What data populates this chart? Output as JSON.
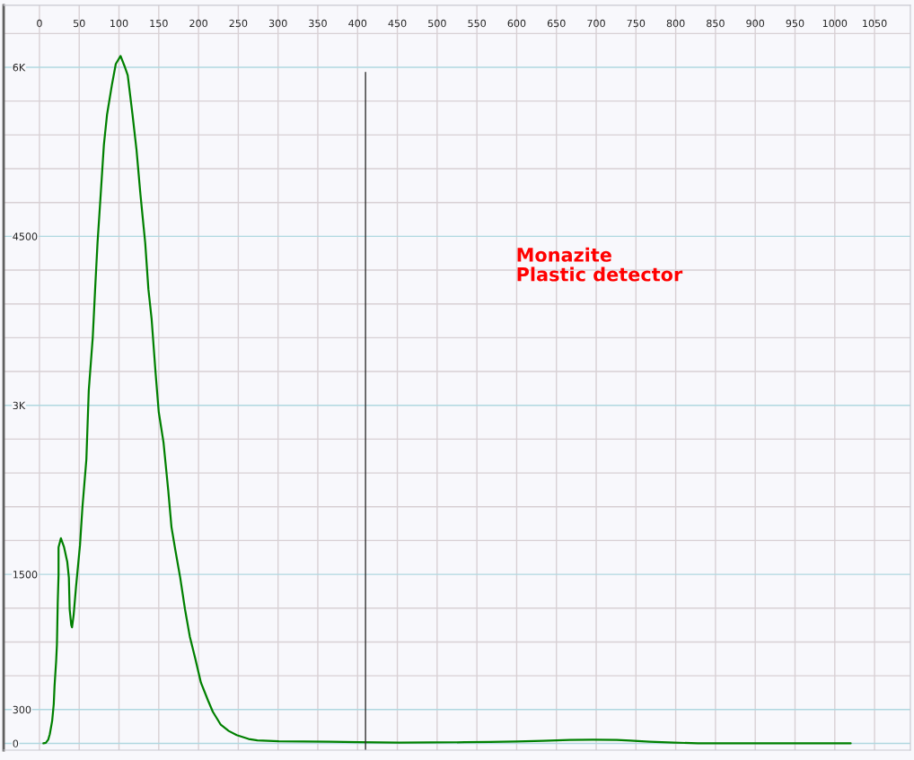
{
  "chart_data": {
    "type": "line",
    "annotations": [
      "Monazite\nPlastic detector"
    ],
    "xlim": [
      -45,
      1095
    ],
    "ylim": [
      -60,
      6550
    ],
    "xticks": [
      0,
      50,
      100,
      150,
      200,
      250,
      300,
      350,
      400,
      450,
      500,
      550,
      600,
      650,
      700,
      750,
      800,
      850,
      900,
      950,
      1000,
      1050
    ],
    "yticks": [
      0,
      300,
      {
        "value": 600,
        "label": null
      },
      {
        "value": 900,
        "label": null
      },
      {
        "value": 1200,
        "label": null
      },
      1500,
      {
        "value": 1800,
        "label": null
      },
      {
        "value": 2100,
        "label": null
      },
      {
        "value": 2400,
        "label": null
      },
      {
        "value": 2700,
        "label": null
      },
      {
        "value": 3000,
        "label": "3K"
      },
      {
        "value": 3300,
        "label": null
      },
      {
        "value": 3600,
        "label": null
      },
      {
        "value": 3900,
        "label": null
      },
      {
        "value": 4200,
        "label": null
      },
      4500,
      {
        "value": 4800,
        "label": null
      },
      {
        "value": 5100,
        "label": null
      },
      {
        "value": 5400,
        "label": null
      },
      {
        "value": 5700,
        "label": null
      },
      {
        "value": 6000,
        "label": "6K"
      },
      {
        "value": 6300,
        "label": null
      }
    ],
    "grid": true,
    "ref_lines": [
      {
        "axis": "x",
        "value": 410,
        "color": "#303030"
      }
    ],
    "series": [
      {
        "color": "#008000",
        "x": [
          5,
          8,
          11,
          13,
          16,
          18,
          19,
          21,
          22,
          23,
          24,
          24,
          27,
          31,
          35,
          37,
          38,
          40,
          41,
          43,
          46,
          51,
          54,
          59,
          62,
          67,
          70,
          73,
          77,
          81,
          85,
          91,
          96,
          102,
          107,
          111,
          117,
          122,
          127,
          133,
          137,
          141,
          146,
          150,
          156,
          162,
          166,
          171,
          177,
          183,
          189,
          196,
          203,
          212,
          218,
          228,
          238,
          248,
          263,
          274,
          301,
          332,
          364,
          402,
          427,
          452,
          493,
          535,
          567,
          600,
          633,
          667,
          696,
          726,
          743,
          767,
          798,
          828,
          878,
          1020
        ],
        "values": [
          0,
          5,
          32,
          81,
          200,
          350,
          510,
          730,
          880,
          1250,
          1490,
          1740,
          1820,
          1740,
          1610,
          1470,
          1190,
          1050,
          1030,
          1140,
          1390,
          1760,
          2090,
          2520,
          3130,
          3600,
          4030,
          4440,
          4870,
          5310,
          5580,
          5840,
          6030,
          6100,
          6010,
          5930,
          5580,
          5270,
          4870,
          4440,
          4030,
          3770,
          3290,
          2940,
          2670,
          2240,
          1920,
          1710,
          1470,
          1190,
          950,
          750,
          540,
          380,
          280,
          165,
          110,
          73,
          39,
          27,
          19,
          16,
          15,
          10,
          8,
          6,
          8,
          10,
          12,
          16,
          23,
          31,
          33,
          31,
          25,
          15,
          6,
          1,
          0,
          0
        ]
      }
    ]
  }
}
